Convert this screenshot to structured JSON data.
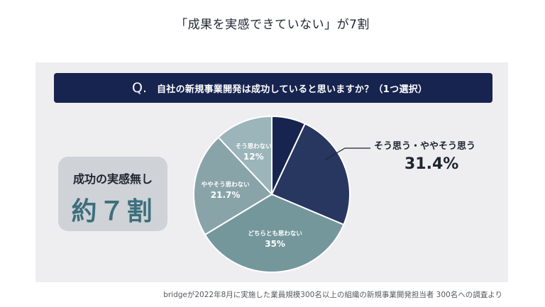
{
  "header": {
    "title": "「成果を実感できていない」が7割"
  },
  "question": {
    "mark": "Q.",
    "text": "自社の新規事業開発は成功していると思いますか？（1つ選択）"
  },
  "summary": {
    "subtitle": "成功の実感無し",
    "main": "約７割"
  },
  "callout": {
    "label": "そう思う・ややそう思う",
    "value": "31.4%"
  },
  "footnote": "bridgeが2022年8月に実施した業員規模300名以上の組織の新規事業開発担当者 300名への調査より",
  "chart_data": {
    "type": "pie",
    "title": "",
    "slices": [
      {
        "label": "",
        "value": 7.0,
        "value_label": "",
        "color": "#17244f"
      },
      {
        "label": "",
        "value": 24.4,
        "value_label": "",
        "color": "#283760"
      },
      {
        "label": "どちらとも思わない",
        "value": 35,
        "value_label": "35%",
        "color": "#74979c"
      },
      {
        "label": "ややそう思わない",
        "value": 21.7,
        "value_label": "21.7%",
        "color": "#89a4a9"
      },
      {
        "label": "そう思わない",
        "value": 12,
        "value_label": "12%",
        "color": "#9bb5ba"
      }
    ],
    "start_angle": 0,
    "direction": "clockwise",
    "group_annotation": {
      "label": "そう思う・ややそう思う",
      "value": "31.4%",
      "placement": "right"
    }
  }
}
